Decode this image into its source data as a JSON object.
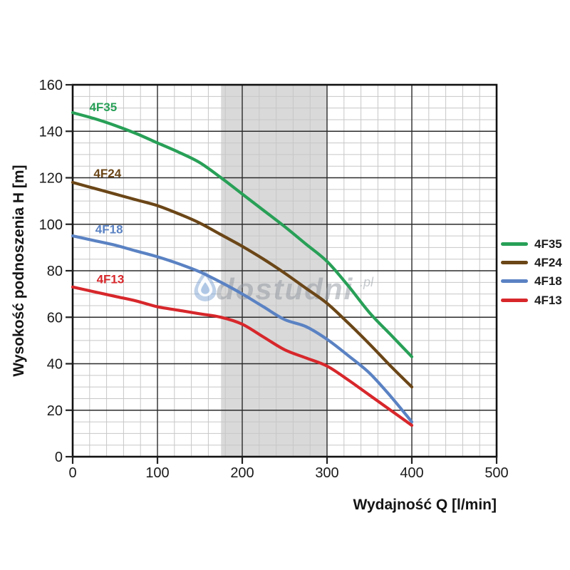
{
  "watermark": {
    "icon": "water-drop-icon",
    "text": "dostudni",
    "suffix": ".pl"
  },
  "chart_data": {
    "type": "line",
    "title": "",
    "xlabel": "Wydajność Q [l/min]",
    "ylabel": "Wysokość podnoszenia H [m]",
    "xlim": [
      0,
      500
    ],
    "ylim": [
      0,
      160
    ],
    "x_ticks": [
      0,
      100,
      200,
      300,
      400,
      500
    ],
    "y_ticks": [
      0,
      20,
      40,
      60,
      80,
      100,
      120,
      140,
      160
    ],
    "x_minor_step": 20,
    "y_minor_step": 5,
    "grid": true,
    "legend_position": "right-outside",
    "shaded_band": {
      "x_from": 175,
      "x_to": 300,
      "color": "#d9d9d9"
    },
    "x": [
      0,
      25,
      50,
      75,
      100,
      125,
      150,
      175,
      200,
      225,
      250,
      275,
      300,
      325,
      350,
      375,
      400
    ],
    "series": [
      {
        "name": "4F35",
        "color": "#28a057",
        "label_at": {
          "x": 36,
          "y": 150.5
        },
        "values": [
          148,
          145.5,
          142.5,
          139,
          135,
          131,
          126.5,
          120,
          113,
          106,
          99,
          91.5,
          84,
          73.5,
          62,
          52.5,
          43
        ]
      },
      {
        "name": "4F24",
        "color": "#6b4617",
        "label_at": {
          "x": 41,
          "y": 122
        },
        "values": [
          118,
          115.5,
          113,
          110.5,
          108,
          104.5,
          100.5,
          95.5,
          90.5,
          85,
          79,
          72.5,
          66,
          57.5,
          48.5,
          39,
          30
        ]
      },
      {
        "name": "4F18",
        "color": "#5a82c3",
        "label_at": {
          "x": 43,
          "y": 98
        },
        "values": [
          95,
          93,
          91,
          88.5,
          86,
          83,
          79.5,
          75,
          70,
          64.5,
          59,
          56,
          50.5,
          43.5,
          36,
          26,
          15
        ]
      },
      {
        "name": "4F13",
        "color": "#d7272b",
        "label_at": {
          "x": 44.5,
          "y": 76.5
        },
        "values": [
          73,
          71,
          69,
          67,
          64.5,
          63,
          61.5,
          60,
          57,
          51.5,
          46,
          42.5,
          39,
          33,
          26.5,
          20,
          13.5
        ]
      }
    ]
  }
}
